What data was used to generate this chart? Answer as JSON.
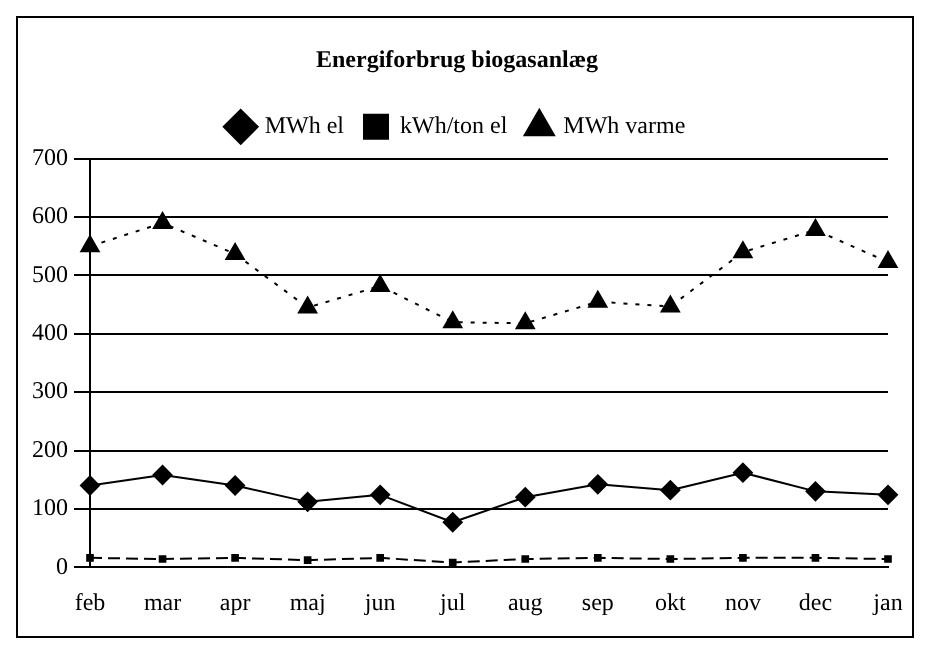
{
  "chart_data": {
    "type": "line",
    "title": "Energiforbrug biogasanlæg",
    "categories": [
      "feb",
      "mar",
      "apr",
      "maj",
      "jun",
      "jul",
      "aug",
      "sep",
      "okt",
      "nov",
      "dec",
      "jan"
    ],
    "series": [
      {
        "name": "MWh el",
        "color": "#000000",
        "marker": "diamond",
        "line_style": "solid",
        "values": [
          140,
          158,
          140,
          112,
          124,
          77,
          120,
          142,
          132,
          162,
          130,
          124
        ]
      },
      {
        "name": "kWh/ton el",
        "color": "#000000",
        "marker": "square",
        "line_style": "dashed",
        "values": [
          16,
          14,
          16,
          12,
          16,
          8,
          14,
          16,
          14,
          16,
          16,
          14
        ]
      },
      {
        "name": "MWh varme",
        "color": "#000000",
        "marker": "triangle",
        "line_style": "dotted",
        "values": [
          550,
          590,
          537,
          445,
          482,
          420,
          418,
          455,
          447,
          540,
          578,
          523
        ]
      }
    ],
    "ylim": [
      0,
      700
    ],
    "yticks": [
      0,
      100,
      200,
      300,
      400,
      500,
      600,
      700
    ],
    "grid": "y",
    "legend": "top"
  }
}
